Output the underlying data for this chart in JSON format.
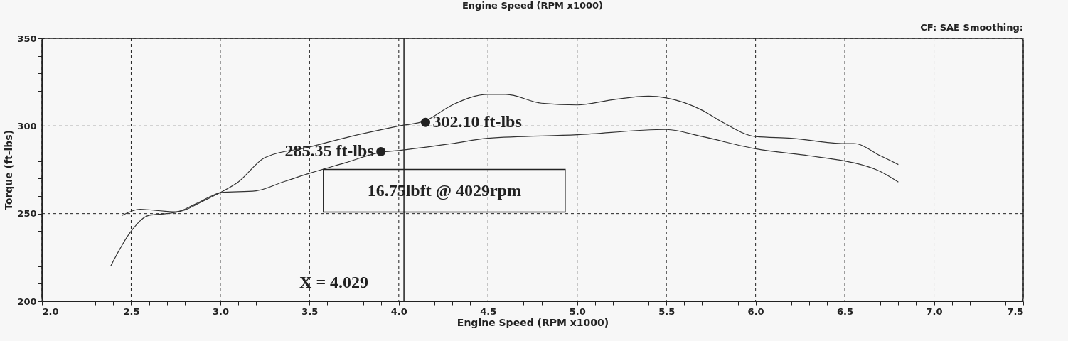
{
  "chart_data": {
    "type": "line",
    "title": "Engine Speed (RPM x1000)",
    "xlabel": "Engine Speed (RPM x1000)",
    "ylabel": "Torque (ft-lbs)",
    "annotations": [
      "CF: SAE  Smoothing:",
      "16.75lbft @ 4029rpm"
    ],
    "xlim": [
      2.0,
      7.5
    ],
    "ylim": [
      200,
      350
    ],
    "xticks": [
      {
        "value": 2.0,
        "label": "2.0"
      },
      {
        "value": 2.1,
        "label": null
      },
      {
        "value": 2.2,
        "label": null
      },
      {
        "value": 2.3,
        "label": null
      },
      {
        "value": 2.4,
        "label": null
      },
      {
        "value": 2.5,
        "label": "2.5"
      },
      {
        "value": 2.6,
        "label": null
      },
      {
        "value": 2.7,
        "label": null
      },
      {
        "value": 2.8,
        "label": null
      },
      {
        "value": 2.9,
        "label": null
      },
      {
        "value": 3.0,
        "label": "3.0"
      },
      {
        "value": 3.1,
        "label": null
      },
      {
        "value": 3.2,
        "label": null
      },
      {
        "value": 3.3,
        "label": null
      },
      {
        "value": 3.4,
        "label": null
      },
      {
        "value": 3.5,
        "label": "3.5"
      },
      {
        "value": 3.6,
        "label": null
      },
      {
        "value": 3.7,
        "label": null
      },
      {
        "value": 3.8,
        "label": null
      },
      {
        "value": 3.9,
        "label": null
      },
      {
        "value": 4.0,
        "label": "4.0"
      },
      {
        "value": 4.1,
        "label": null
      },
      {
        "value": 4.2,
        "label": null
      },
      {
        "value": 4.3,
        "label": null
      },
      {
        "value": 4.4,
        "label": null
      },
      {
        "value": 4.5,
        "label": "4.5"
      },
      {
        "value": 4.6,
        "label": null
      },
      {
        "value": 4.7,
        "label": null
      },
      {
        "value": 4.8,
        "label": null
      },
      {
        "value": 4.9,
        "label": null
      },
      {
        "value": 5.0,
        "label": "5.0"
      },
      {
        "value": 5.1,
        "label": null
      },
      {
        "value": 5.2,
        "label": null
      },
      {
        "value": 5.3,
        "label": null
      },
      {
        "value": 5.4,
        "label": null
      },
      {
        "value": 5.5,
        "label": "5.5"
      },
      {
        "value": 5.6,
        "label": null
      },
      {
        "value": 5.7,
        "label": null
      },
      {
        "value": 5.8,
        "label": null
      },
      {
        "value": 5.9,
        "label": null
      },
      {
        "value": 6.0,
        "label": "6.0"
      },
      {
        "value": 6.1,
        "label": null
      },
      {
        "value": 6.2,
        "label": null
      },
      {
        "value": 6.3,
        "label": null
      },
      {
        "value": 6.4,
        "label": null
      },
      {
        "value": 6.5,
        "label": "6.5"
      },
      {
        "value": 6.6,
        "label": null
      },
      {
        "value": 6.7,
        "label": null
      },
      {
        "value": 6.8,
        "label": null
      },
      {
        "value": 6.9,
        "label": null
      },
      {
        "value": 7.0,
        "label": "7.0"
      },
      {
        "value": 7.1,
        "label": null
      },
      {
        "value": 7.2,
        "label": null
      },
      {
        "value": 7.3,
        "label": null
      },
      {
        "value": 7.4,
        "label": null
      },
      {
        "value": 7.5,
        "label": "7.5"
      }
    ],
    "yticks": [
      200,
      {
        "value": 210,
        "label": null
      },
      {
        "value": 220,
        "label": null
      },
      {
        "value": 230,
        "label": null
      },
      {
        "value": 240,
        "label": null
      },
      250,
      {
        "value": 260,
        "label": null
      },
      {
        "value": 270,
        "label": null
      },
      {
        "value": 280,
        "label": null
      },
      {
        "value": 290,
        "label": null
      },
      300,
      {
        "value": 310,
        "label": null
      },
      {
        "value": 320,
        "label": null
      },
      {
        "value": 330,
        "label": null
      },
      {
        "value": 340,
        "label": null
      },
      350
    ],
    "grid": true,
    "line_style": "solid",
    "ref_lines": [
      {
        "axis": "x",
        "value": 4.029,
        "label": "X = 4.029",
        "color": "#222222",
        "line_style": "solid"
      }
    ],
    "series": [
      {
        "color": "#333333",
        "x": [
          2.385,
          2.5,
          2.6,
          2.7,
          2.8,
          2.9,
          3.0,
          3.1,
          3.25,
          3.5,
          3.73,
          4.0,
          4.15,
          4.3,
          4.5,
          4.6,
          4.8,
          5.0,
          5.2,
          5.4,
          5.5,
          5.7,
          5.8,
          6.0,
          6.2,
          6.5,
          6.55,
          6.7,
          6.8
        ],
        "values": [
          220,
          240,
          249,
          250,
          252,
          257,
          262,
          268,
          282,
          288,
          294,
          300,
          303,
          312,
          318,
          318,
          313,
          312,
          315,
          317,
          316,
          309,
          303,
          294,
          293,
          290,
          290,
          283,
          278
        ]
      },
      {
        "color": "#333333",
        "x": [
          2.45,
          2.55,
          2.62,
          2.75,
          2.85,
          2.95,
          3.0,
          3.2,
          3.35,
          3.5,
          3.7,
          3.9,
          4.0,
          4.3,
          4.5,
          5.0,
          5.5,
          5.7,
          6.0,
          6.3,
          6.5,
          6.55,
          6.7,
          6.8
        ],
        "values": [
          249,
          252.5,
          252,
          251,
          255,
          260,
          262,
          263,
          268,
          273,
          279,
          285,
          286,
          290,
          293,
          295,
          298,
          294,
          287,
          283,
          280,
          279,
          274,
          268
        ]
      },
      {
        "type": "scatter",
        "color": "#222222",
        "marker": "circle",
        "x": [
          3.9,
          4.15
        ],
        "values": [
          285.35,
          302.1
        ],
        "value_labels": [
          "285.35 ft-lbs",
          "302.10 ft-lbs"
        ]
      }
    ]
  }
}
